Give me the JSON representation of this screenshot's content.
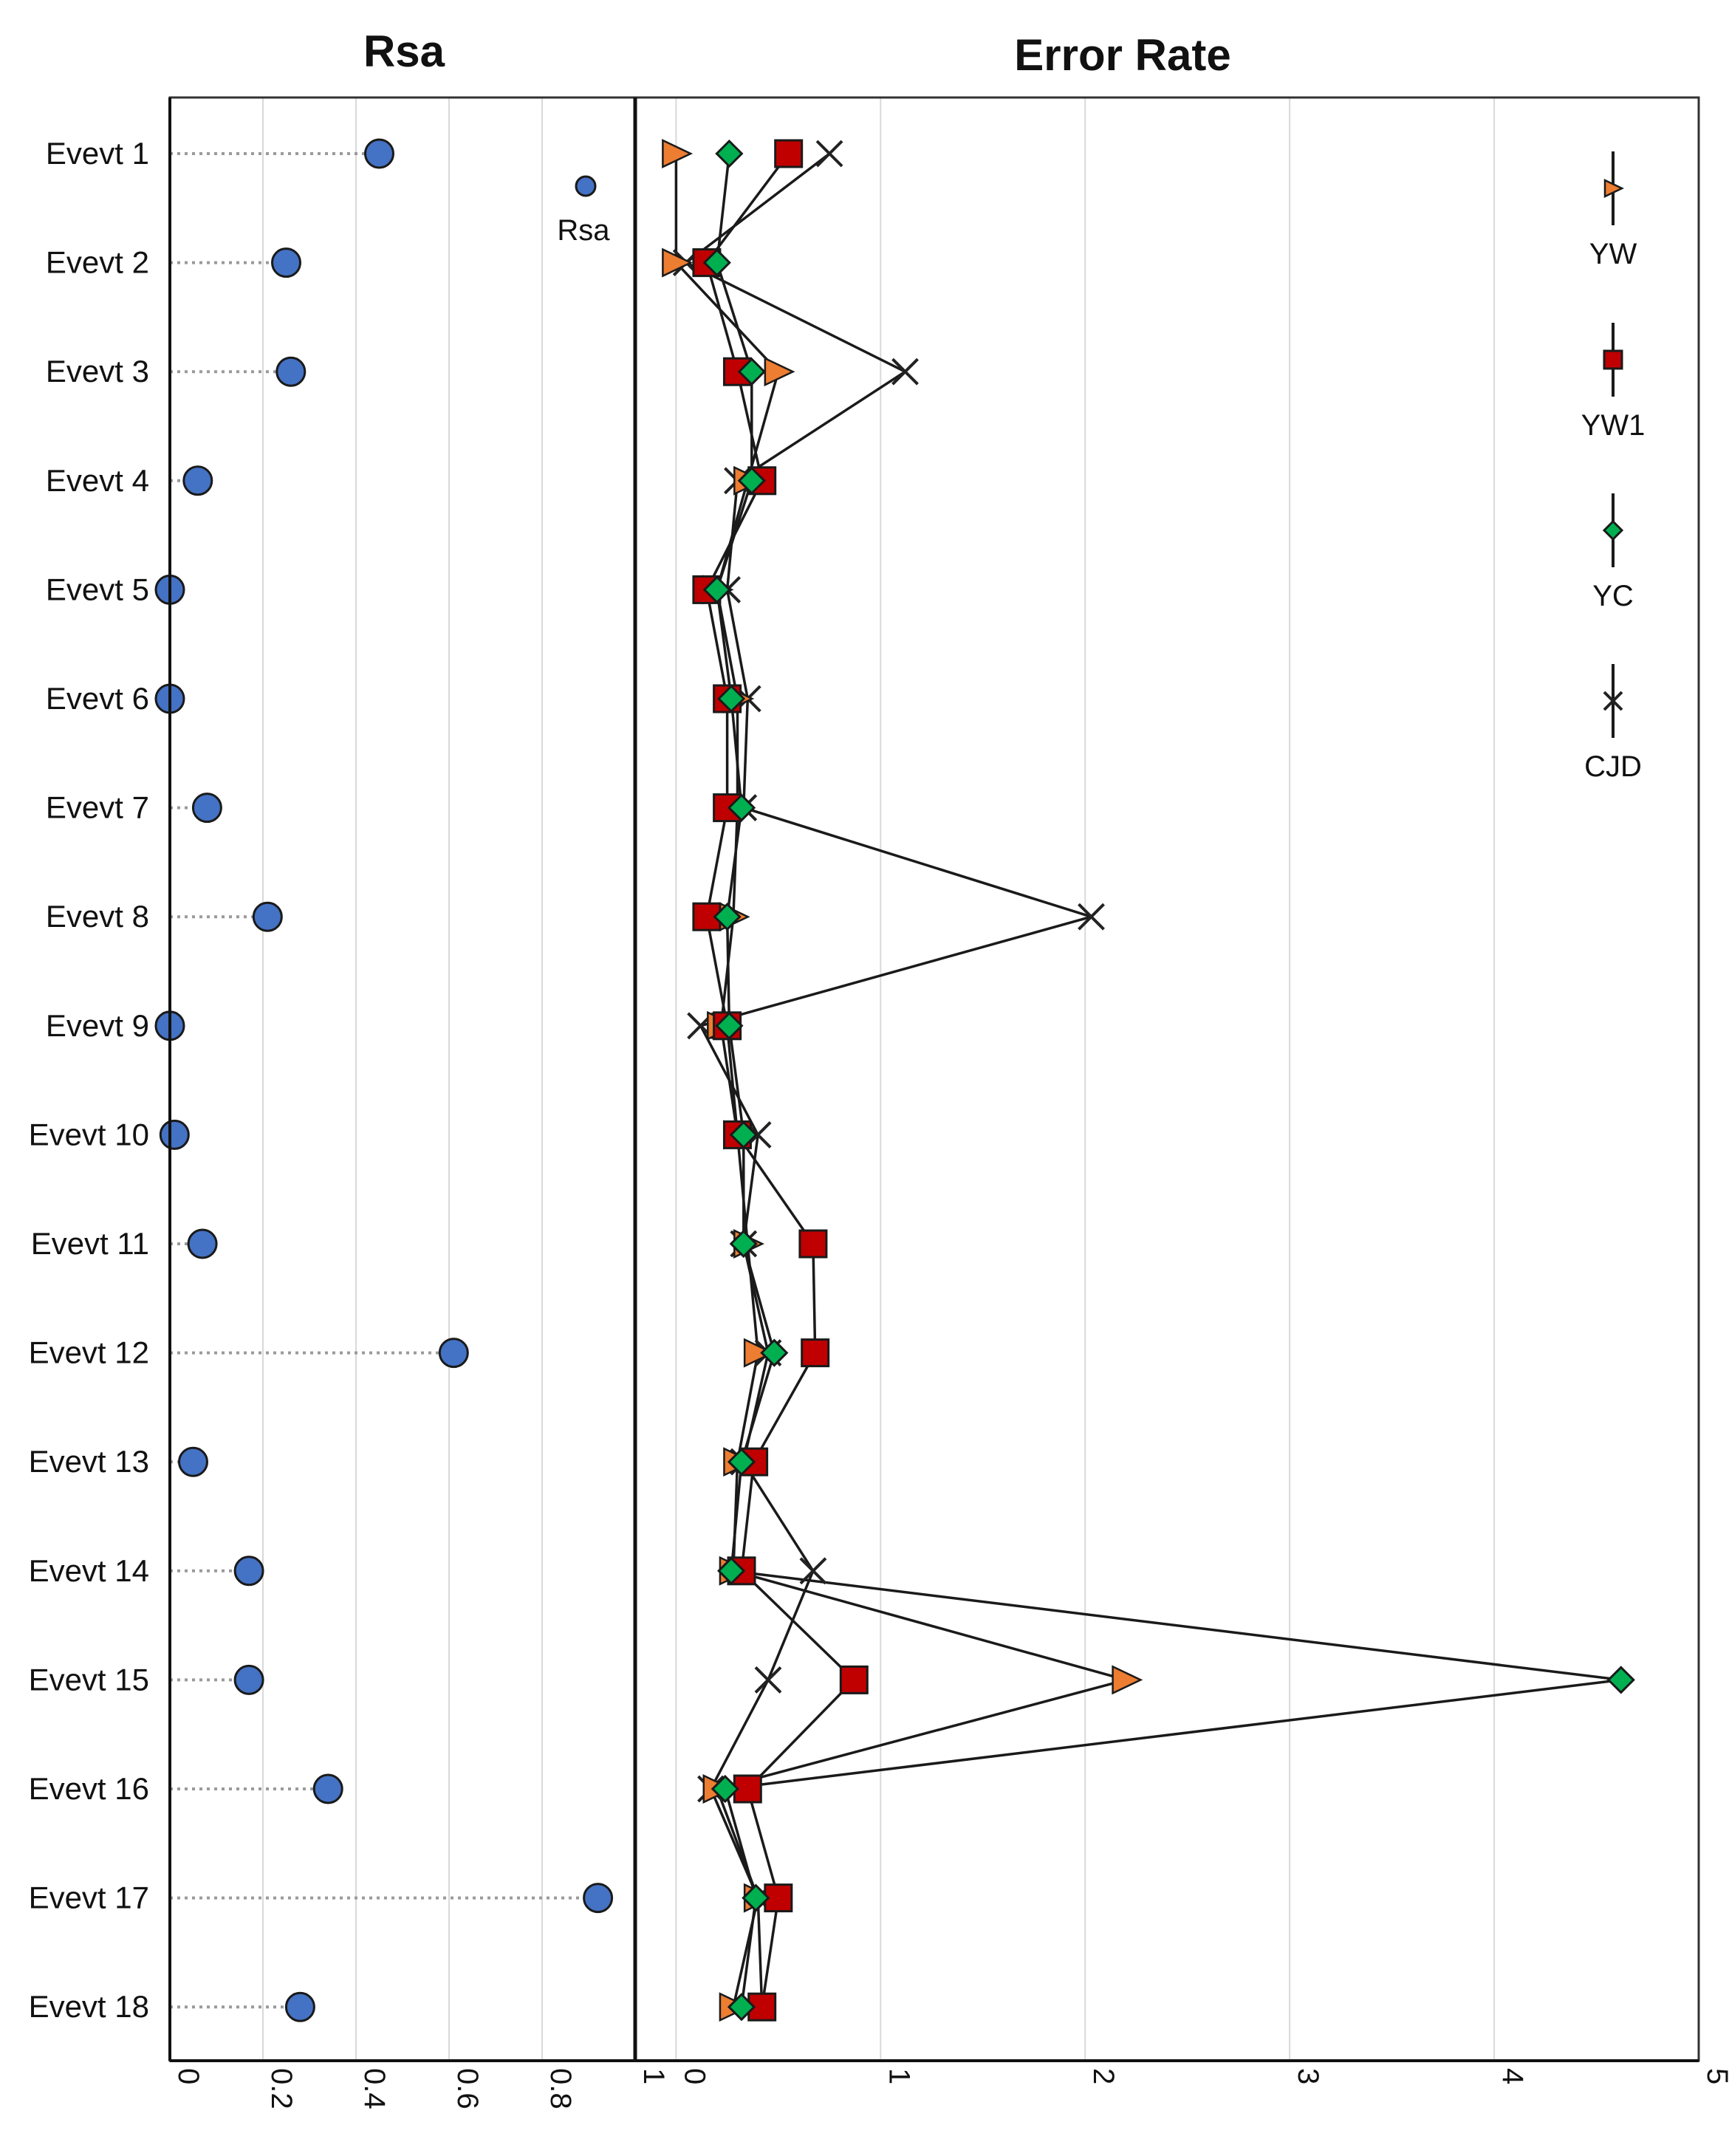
{
  "colors": {
    "rsa": "#4472C4",
    "YW": "#ED7D31",
    "YW1": "#C00000",
    "YC": "#00B050",
    "CJD": "#222222",
    "grid": "#d9d9d9",
    "leader": "#9a9a9a"
  },
  "chart_data": [
    {
      "type": "scatter",
      "title": "Rsa",
      "xlim": [
        0,
        1
      ],
      "xticks": [
        "0",
        "0.2",
        "0.4",
        "0.6",
        "0.8",
        "1"
      ],
      "xtick_values": [
        0,
        0.2,
        0.4,
        0.6,
        0.8,
        1
      ],
      "legend": [
        "Rsa"
      ],
      "categories": [
        "Evevt 1",
        "Evevt 2",
        "Evevt 3",
        "Evevt 4",
        "Evevt 5",
        "Evevt 6",
        "Evevt 7",
        "Evevt 8",
        "Evevt 9",
        "Evevt 10",
        "Evevt 11",
        "Evevt 12",
        "Evevt 13",
        "Evevt 14",
        "Evevt 15",
        "Evevt 16",
        "Evevt 17",
        "Evevt 18"
      ],
      "values": [
        0.45,
        0.25,
        0.26,
        0.06,
        0.0,
        0.0,
        0.08,
        0.21,
        0.0,
        0.01,
        0.07,
        0.61,
        0.05,
        0.17,
        0.17,
        0.34,
        0.92,
        0.28
      ]
    },
    {
      "type": "line",
      "title": "Error Rate",
      "xlim": [
        -0.2,
        5
      ],
      "xticks": [
        "0",
        "1",
        "2",
        "3",
        "4",
        "5"
      ],
      "xtick_values": [
        0,
        1,
        2,
        3,
        4,
        5
      ],
      "legend": [
        "YW",
        "YW1",
        "YC",
        "CJD"
      ],
      "categories": [
        "Evevt 1",
        "Evevt 2",
        "Evevt 3",
        "Evevt 4",
        "Evevt 5",
        "Evevt 6",
        "Evevt 7",
        "Evevt 8",
        "Evevt 9",
        "Evevt 10",
        "Evevt 11",
        "Evevt 12",
        "Evevt 13",
        "Evevt 14",
        "Evevt 15",
        "Evevt 16",
        "Evevt 17",
        "Evevt 18"
      ],
      "series": [
        {
          "name": "YW",
          "marker": "triangle",
          "values": [
            0.0,
            0.0,
            0.5,
            0.35,
            0.2,
            0.3,
            0.3,
            0.28,
            0.22,
            0.3,
            0.35,
            0.4,
            0.3,
            0.28,
            2.2,
            0.2,
            0.4,
            0.28
          ]
        },
        {
          "name": "YW1",
          "marker": "square",
          "values": [
            0.55,
            0.15,
            0.3,
            0.42,
            0.15,
            0.25,
            0.25,
            0.15,
            0.25,
            0.3,
            0.67,
            0.68,
            0.38,
            0.32,
            0.87,
            0.35,
            0.5,
            0.42
          ]
        },
        {
          "name": "YC",
          "marker": "diamond",
          "values": [
            0.26,
            0.2,
            0.37,
            0.37,
            0.2,
            0.27,
            0.32,
            0.25,
            0.26,
            0.33,
            0.33,
            0.48,
            0.32,
            0.27,
            4.62,
            0.24,
            0.39,
            0.32
          ]
        },
        {
          "name": "CJD",
          "marker": "x",
          "values": [
            0.75,
            0.05,
            1.12,
            0.3,
            0.25,
            0.35,
            0.33,
            2.03,
            0.12,
            0.4,
            0.33,
            0.45,
            0.33,
            0.67,
            0.45,
            0.17,
            0.4,
            0.42
          ]
        }
      ]
    }
  ]
}
